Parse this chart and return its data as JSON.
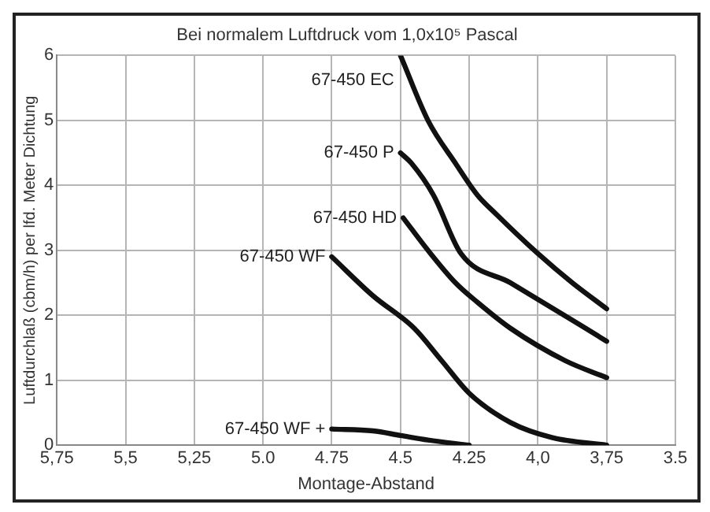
{
  "chart_data": {
    "type": "line",
    "title": "Bei normalem Luftdruck vom 1,0x10⁵ Pascal",
    "xlabel": "Montage-Abstand",
    "ylabel": "Luftdurchlaß (cbm/h) per lfd. Meter Dichtung",
    "xlim": [
      5.75,
      3.5
    ],
    "xticks": [
      {
        "value": 5.75,
        "label": "5,75"
      },
      {
        "value": 5.5,
        "label": "5,5"
      },
      {
        "value": 5.25,
        "label": "5,25"
      },
      {
        "value": 5.0,
        "label": "5.0"
      },
      4.75,
      4.5,
      4.25,
      {
        "value": 4.0,
        "label": "4,0"
      },
      {
        "value": 3.75,
        "label": "3,75"
      },
      3.5
    ],
    "ylim": [
      0,
      6
    ],
    "yticks": [
      0,
      1,
      2,
      3,
      4,
      5,
      6
    ],
    "grid": true,
    "legend": false,
    "marker": "none",
    "line_style": "solid",
    "series": [
      {
        "name": "67-450 EC",
        "color": "#111111",
        "x": [
          4.5,
          4.4,
          4.3,
          4.22,
          4.15,
          4.0,
          3.875,
          3.75
        ],
        "values": [
          6,
          5.0,
          4.34,
          3.85,
          3.55,
          2.95,
          2.5,
          2.1
        ]
      },
      {
        "name": "67-450 P",
        "color": "#111111",
        "x": [
          4.5,
          4.46,
          4.38,
          4.28,
          4.1,
          3.85,
          3.75
        ],
        "values": [
          4.5,
          4.34,
          3.85,
          2.95,
          2.5,
          1.86,
          1.6
        ]
      },
      {
        "name": "67-450 HD",
        "color": "#111111",
        "x": [
          4.49,
          4.4,
          4.3,
          4.22,
          4.1,
          3.9,
          3.75
        ],
        "values": [
          3.5,
          3.0,
          2.5,
          2.2,
          1.8,
          1.3,
          1.04
        ]
      },
      {
        "name": "67-450 WF",
        "color": "#111111",
        "x": [
          4.75,
          4.6,
          4.45,
          4.35,
          4.25,
          4.1,
          3.95,
          3.75
        ],
        "values": [
          2.9,
          2.3,
          1.8,
          1.3,
          0.8,
          0.35,
          0.12,
          0
        ]
      },
      {
        "name": "67-450 WF +",
        "color": "#111111",
        "x": [
          4.75,
          4.6,
          4.5,
          4.4,
          4.25
        ],
        "values": [
          0.25,
          0.22,
          0.15,
          0.08,
          0
        ]
      }
    ]
  }
}
